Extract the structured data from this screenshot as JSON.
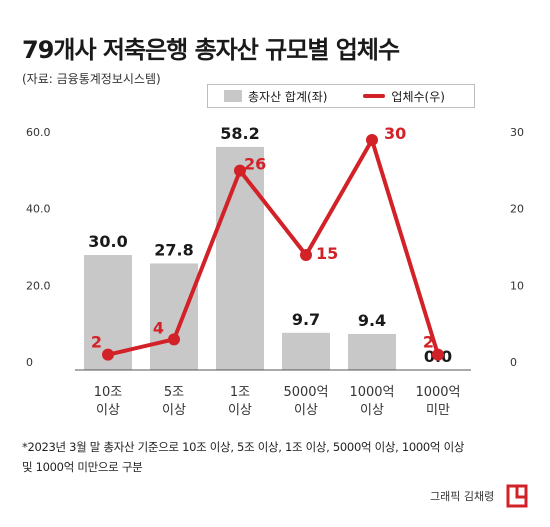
{
  "title": "79개사 저축은행 총자산 규모별 업체수",
  "source": "(자료: 금융통계정보시스템)",
  "footnote": {
    "line1": "*2023년 3월 말 총자산 기준으로 10조 이상, 5조 이상, 1조 이상, 5000억 이상, 1000억 이상",
    "line2": "및 1000억 미만으로 구분"
  },
  "credit": "그래픽 김채령",
  "colors": {
    "bar": "#c8c8c8",
    "line": "#d32128",
    "text": "#1a1a1a"
  },
  "chart_data": {
    "type": "bar",
    "categories": [
      [
        "10조",
        "이상"
      ],
      [
        "5조",
        "이상"
      ],
      [
        "1조",
        "이상"
      ],
      [
        "5000억",
        "이상"
      ],
      [
        "1000억",
        "이상"
      ],
      [
        "1000억",
        "미만"
      ]
    ],
    "series": [
      {
        "name": "총자산 합계(좌)",
        "type": "bar",
        "axis": "left",
        "values": [
          30.0,
          27.8,
          58.2,
          9.7,
          9.4,
          0.0
        ],
        "labels": [
          "30.0",
          "27.8",
          "58.2",
          "9.7",
          "9.4",
          "0.0"
        ]
      },
      {
        "name": "업체수(우)",
        "type": "line",
        "axis": "right",
        "values": [
          2,
          4,
          26,
          15,
          30,
          2
        ],
        "labels": [
          "2",
          "4",
          "26",
          "15",
          "30",
          "2"
        ]
      }
    ],
    "y_left": {
      "ylim": [
        0,
        60
      ],
      "ticks": [
        0,
        20,
        40,
        60
      ],
      "tick_labels": [
        "0",
        "20.0",
        "40.0",
        "60.0"
      ]
    },
    "y_right": {
      "ylim": [
        0,
        30
      ],
      "ticks": [
        0,
        10,
        20,
        30
      ],
      "tick_labels": [
        "0",
        "10",
        "20",
        "30"
      ]
    },
    "grid": false,
    "legend_position": "top-right"
  }
}
